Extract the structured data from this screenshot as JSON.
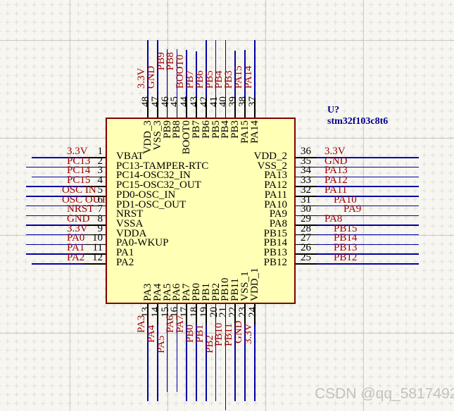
{
  "component": {
    "designator": "U?",
    "part_number": "stm32f103c8t6",
    "pins": {
      "left": [
        {
          "num": "1",
          "name": "VBAT",
          "net": "3.3V"
        },
        {
          "num": "2",
          "name": "PC13-TAMPER-RTC",
          "net": "PC13"
        },
        {
          "num": "3",
          "name": "PC14-OSC32_IN",
          "net": "PC14"
        },
        {
          "num": "4",
          "name": "PC15-OSC32_OUT",
          "net": "PC15"
        },
        {
          "num": "5",
          "name": "PD0-OSC_IN",
          "net": "OSC IN"
        },
        {
          "num": "6",
          "name": "PD1-OSC_OUT",
          "net": "OSC OUT"
        },
        {
          "num": "7",
          "name": "NRST",
          "net": "NRST"
        },
        {
          "num": "8",
          "name": "VSSA",
          "net": "GND"
        },
        {
          "num": "9",
          "name": "VDDA",
          "net": "3.3V"
        },
        {
          "num": "10",
          "name": "PA0-WKUP",
          "net": "PA0"
        },
        {
          "num": "11",
          "name": "PA1",
          "net": "PA1"
        },
        {
          "num": "12",
          "name": "PA2",
          "net": "PA2"
        }
      ],
      "right": [
        {
          "num": "36",
          "name": "VDD_2",
          "net": "3.3V"
        },
        {
          "num": "35",
          "name": "VSS_2",
          "net": "GND"
        },
        {
          "num": "34",
          "name": "PA13",
          "net": "PA13"
        },
        {
          "num": "33",
          "name": "PA12",
          "net": "PA12"
        },
        {
          "num": "32",
          "name": "PA11",
          "net": "PA11"
        },
        {
          "num": "31",
          "name": "PA10",
          "net": "PA10"
        },
        {
          "num": "30",
          "name": "PA9",
          "net": "PA9"
        },
        {
          "num": "29",
          "name": "PA8",
          "net": "PA8"
        },
        {
          "num": "28",
          "name": "PB15",
          "net": "PB15"
        },
        {
          "num": "27",
          "name": "PB14",
          "net": "PB14"
        },
        {
          "num": "26",
          "name": "PB13",
          "net": "PB13"
        },
        {
          "num": "25",
          "name": "PB12",
          "net": "PB12"
        }
      ],
      "top": [
        {
          "num": "48",
          "name": "VDD_3",
          "net": "3.3V"
        },
        {
          "num": "47",
          "name": "VSS_3",
          "net": "GND"
        },
        {
          "num": "46",
          "name": "PB9",
          "net": "PB9"
        },
        {
          "num": "45",
          "name": "PB8",
          "net": "PB8"
        },
        {
          "num": "44",
          "name": "BOOT0",
          "net": "BOOT0"
        },
        {
          "num": "43",
          "name": "PB7",
          "net": "PB7"
        },
        {
          "num": "42",
          "name": "PB6",
          "net": "PB6"
        },
        {
          "num": "41",
          "name": "PB5",
          "net": "PB5"
        },
        {
          "num": "40",
          "name": "PB4",
          "net": "PB4"
        },
        {
          "num": "39",
          "name": "PB3",
          "net": "PB3"
        },
        {
          "num": "38",
          "name": "PA15",
          "net": "PA15"
        },
        {
          "num": "37",
          "name": "PA14",
          "net": "PA14"
        }
      ],
      "bottom": [
        {
          "num": "13",
          "name": "PA3",
          "net": "PA3"
        },
        {
          "num": "14",
          "name": "PA4",
          "net": "PA4"
        },
        {
          "num": "15",
          "name": "PA5",
          "net": "PA5"
        },
        {
          "num": "16",
          "name": "PA6",
          "net": "PA6"
        },
        {
          "num": "17",
          "name": "PA7",
          "net": "PA7"
        },
        {
          "num": "18",
          "name": "PB0",
          "net": "PB0"
        },
        {
          "num": "19",
          "name": "PB1",
          "net": "PB1"
        },
        {
          "num": "20",
          "name": "PB2",
          "net": "PB2"
        },
        {
          "num": "21",
          "name": "PB10",
          "net": "PB10"
        },
        {
          "num": "22",
          "name": "PB11",
          "net": "PB11"
        },
        {
          "num": "23",
          "name": "VSS_1",
          "net": "GND"
        },
        {
          "num": "24",
          "name": "VDD_1",
          "net": "3.3V"
        }
      ]
    }
  },
  "watermark": "CSDN @qq_58174923",
  "colors": {
    "background": "#F7F6F1",
    "wire": "#0000A8",
    "pin": "#000000",
    "net_label": "#9B0000",
    "component_body": "#FFFFB5",
    "component_border": "#800000",
    "designator_text": "#00008B",
    "grid_minor": "#E0DED7",
    "grid_major": "#CCCAC4",
    "watermark_text": "#C4C2BC"
  }
}
